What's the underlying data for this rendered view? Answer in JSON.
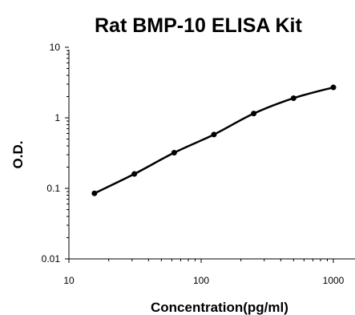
{
  "chart_data": {
    "type": "line",
    "title": "Rat BMP-10 ELISA Kit",
    "xlabel": "Concentration(pg/ml)",
    "ylabel": "O.D.",
    "x_scale": "log",
    "y_scale": "log",
    "xlim": [
      10,
      1200
    ],
    "ylim": [
      0.01,
      10
    ],
    "x_ticks": [
      "10",
      "100",
      "1000"
    ],
    "y_ticks": [
      "10",
      "1",
      "0.1",
      "0.01"
    ],
    "grid": false,
    "legend": "none",
    "series": [
      {
        "x": [
          15.6,
          31.25,
          62.5,
          125,
          250,
          500,
          1000
        ],
        "y": [
          0.085,
          0.16,
          0.32,
          0.58,
          1.15,
          1.9,
          2.7
        ]
      }
    ]
  }
}
